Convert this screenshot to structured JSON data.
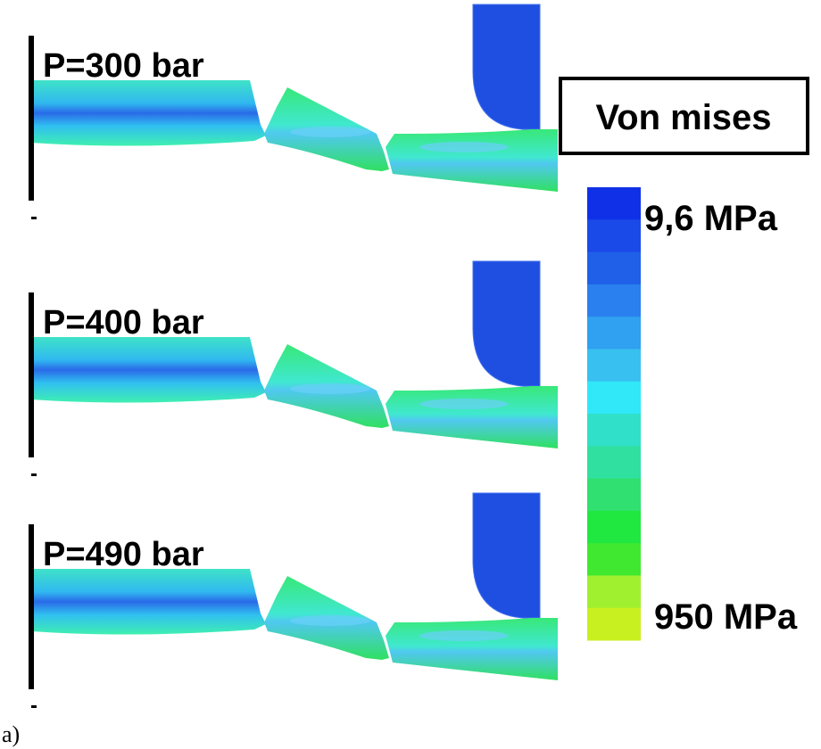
{
  "panels": [
    {
      "label": "P=300 bar"
    },
    {
      "label": "P=400 bar"
    },
    {
      "label": "P=490 bar"
    }
  ],
  "legend": {
    "title": "Von mises",
    "top_label": "9,6 MPa",
    "bottom_label": "950 MPa"
  },
  "caption": "a)"
}
